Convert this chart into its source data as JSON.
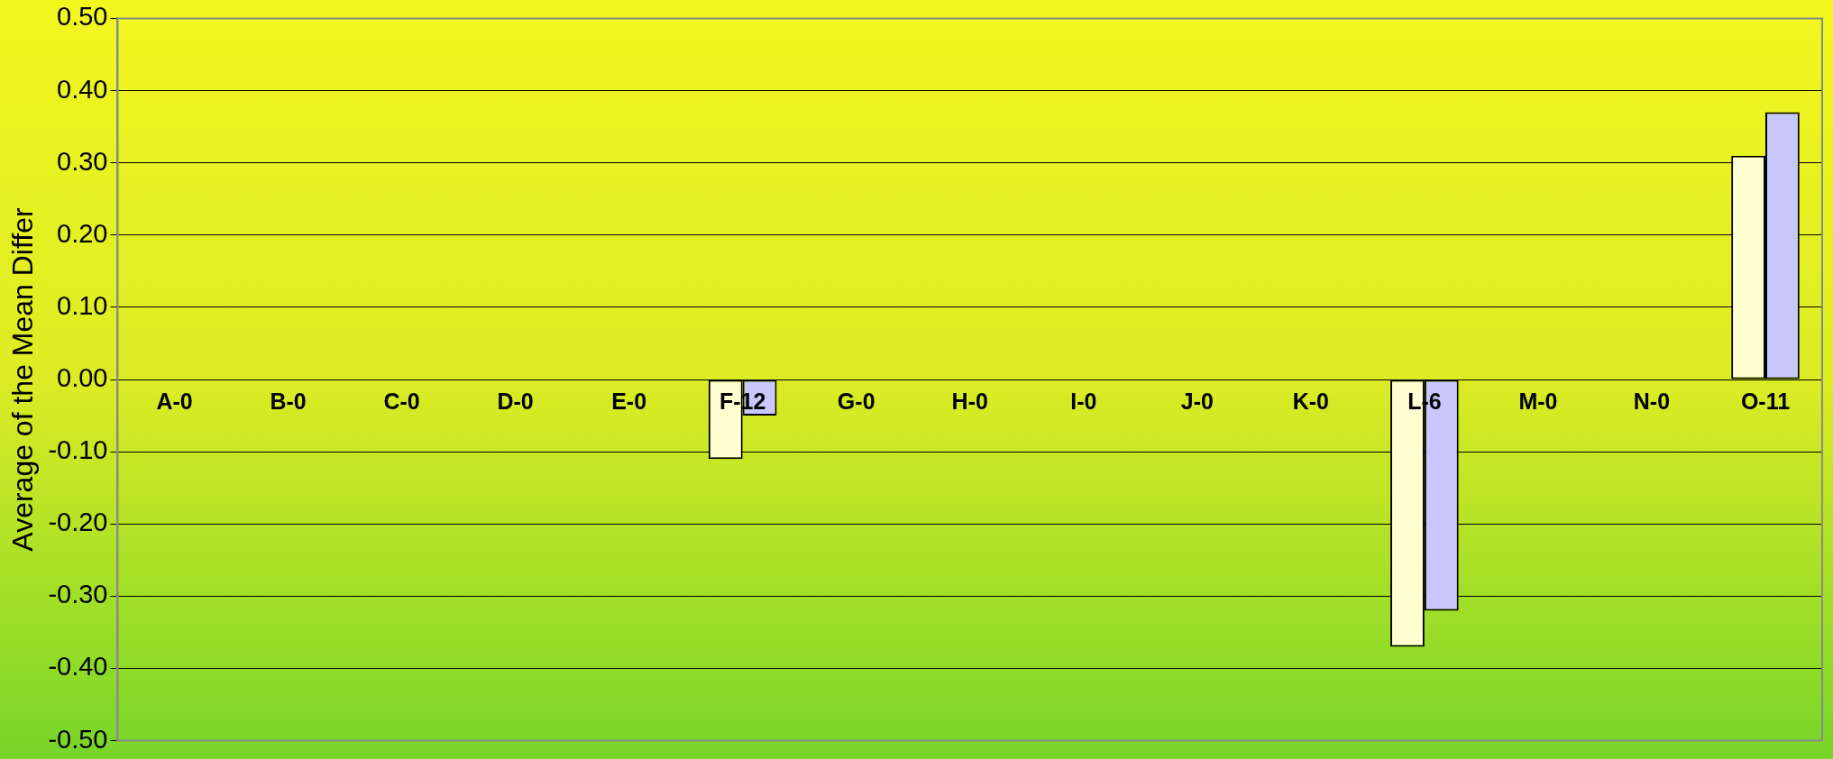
{
  "chart_data": {
    "type": "bar",
    "ylabel": "Average of the Mean Differ",
    "categories": [
      "A-0",
      "B-0",
      "C-0",
      "D-0",
      "E-0",
      "F-12",
      "G-0",
      "H-0",
      "I-0",
      "J-0",
      "K-0",
      "L-6",
      "M-0",
      "N-0",
      "O-11"
    ],
    "series": [
      {
        "color": "#ffffd2",
        "values": [
          0,
          0,
          0,
          0,
          0,
          -0.11,
          0,
          0,
          0,
          0,
          0,
          -0.37,
          0,
          0,
          0.31
        ]
      },
      {
        "color": "#c8c8ff",
        "values": [
          0,
          0,
          0,
          0,
          0,
          -0.05,
          0,
          0,
          0,
          0,
          0,
          -0.32,
          0,
          0,
          0.37
        ]
      }
    ],
    "ylim": [
      -0.5,
      0.5
    ],
    "yticks": [
      {
        "value": -0.5,
        "label": "-0.50"
      },
      {
        "value": -0.4,
        "label": "-0.40"
      },
      {
        "value": -0.3,
        "label": "-0.30"
      },
      {
        "value": -0.2,
        "label": "-0.20"
      },
      {
        "value": -0.1,
        "label": "-0.10"
      },
      {
        "value": 0,
        "label": "0.00"
      },
      {
        "value": 0.1,
        "label": "0.10"
      },
      {
        "value": 0.2,
        "label": "0.20"
      },
      {
        "value": 0.3,
        "label": "0.30"
      },
      {
        "value": 0.4,
        "label": "0.40"
      },
      {
        "value": 0.5,
        "label": "0.50"
      }
    ],
    "grid": "y",
    "legend": false
  }
}
